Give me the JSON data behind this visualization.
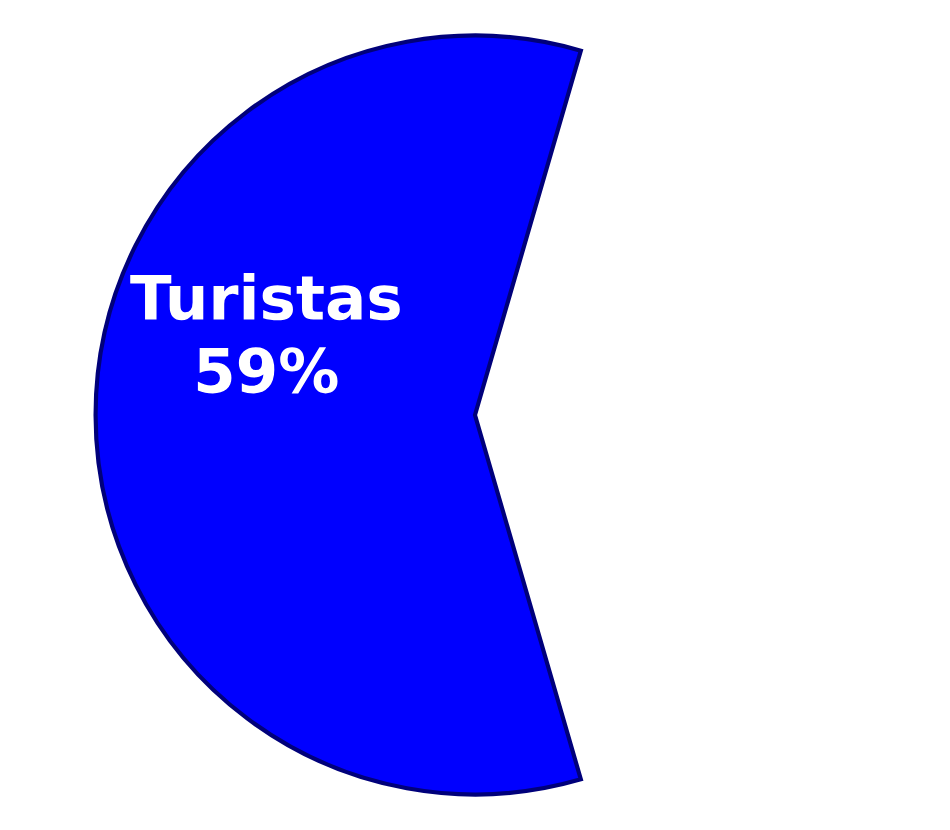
{
  "chart_data": {
    "type": "pie",
    "categories": [
      "Turistas"
    ],
    "values": [
      59
    ],
    "colors": [
      "#0000ff"
    ],
    "value_labels": [
      "59%"
    ]
  }
}
